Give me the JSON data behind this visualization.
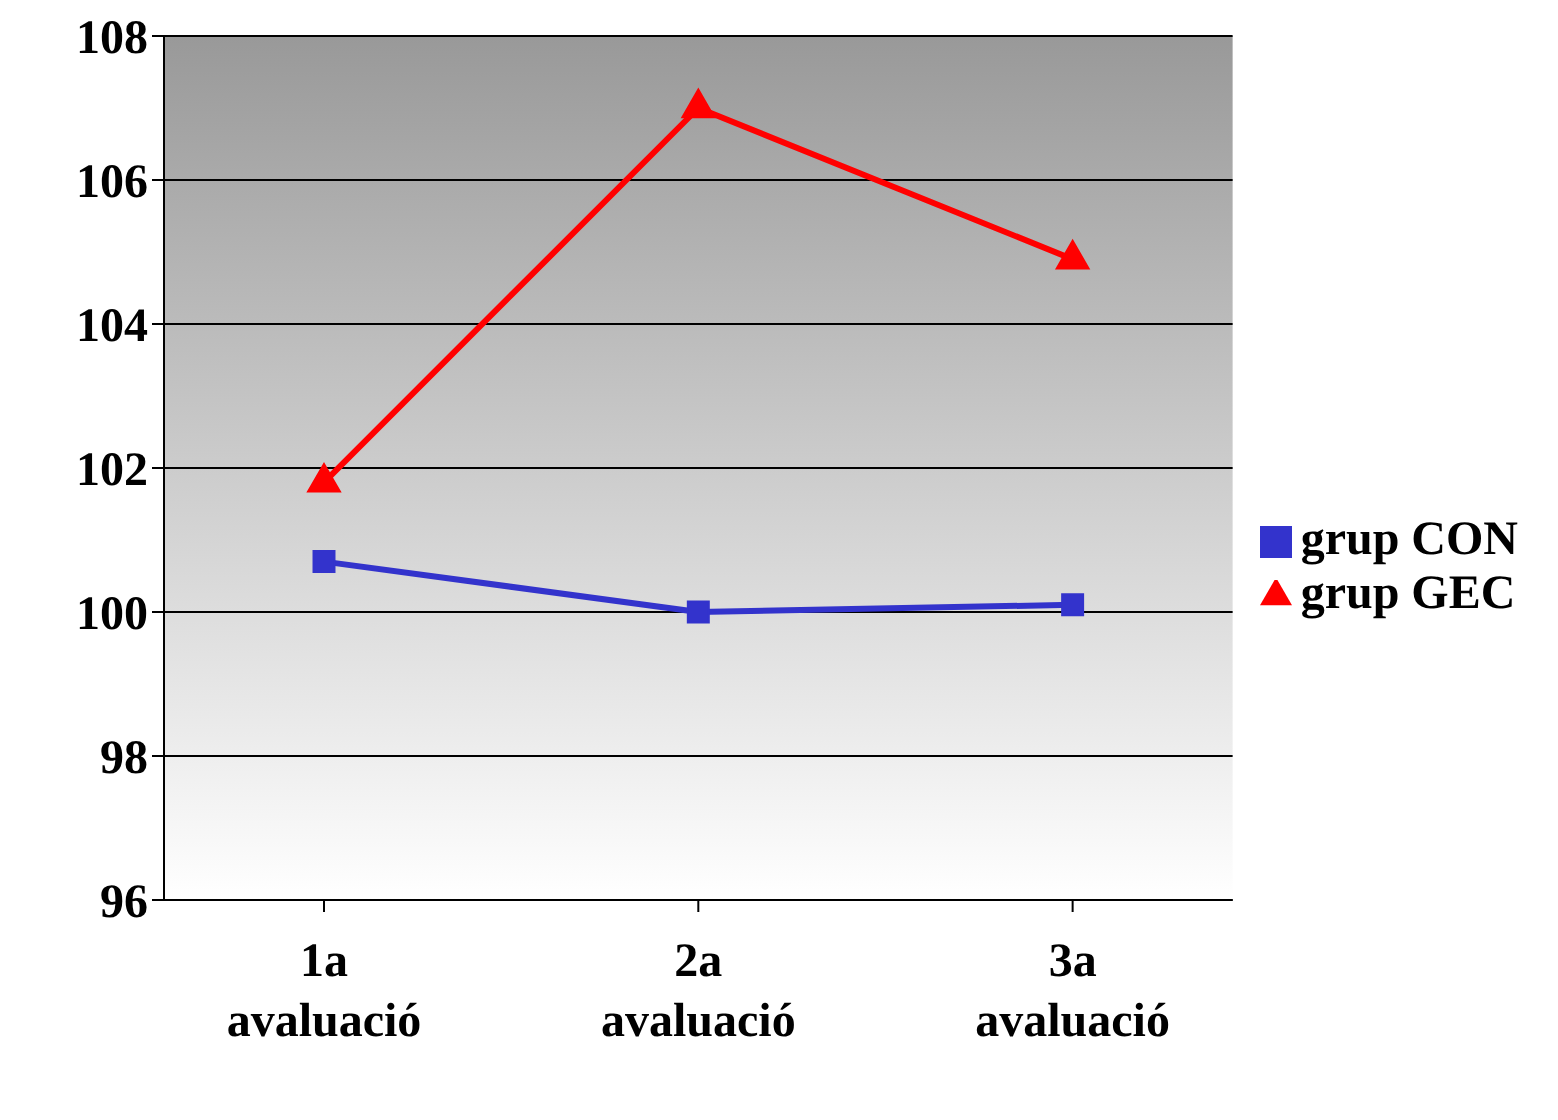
{
  "chart_data": {
    "type": "line",
    "categories": [
      "1a avaluació",
      "2a avaluació",
      "3a avaluació"
    ],
    "series": [
      {
        "name": "grup GEC",
        "color": "#ff0000",
        "marker": "triangle",
        "values": [
          101.8,
          107.0,
          104.9
        ]
      },
      {
        "name": "grup CON",
        "color": "#3333cc",
        "marker": "square",
        "values": [
          100.7,
          100.0,
          100.1
        ]
      }
    ],
    "ylim": [
      96,
      108
    ],
    "yticks": [
      96,
      98,
      100,
      102,
      104,
      106,
      108
    ],
    "grid": "y",
    "legend": "right"
  }
}
